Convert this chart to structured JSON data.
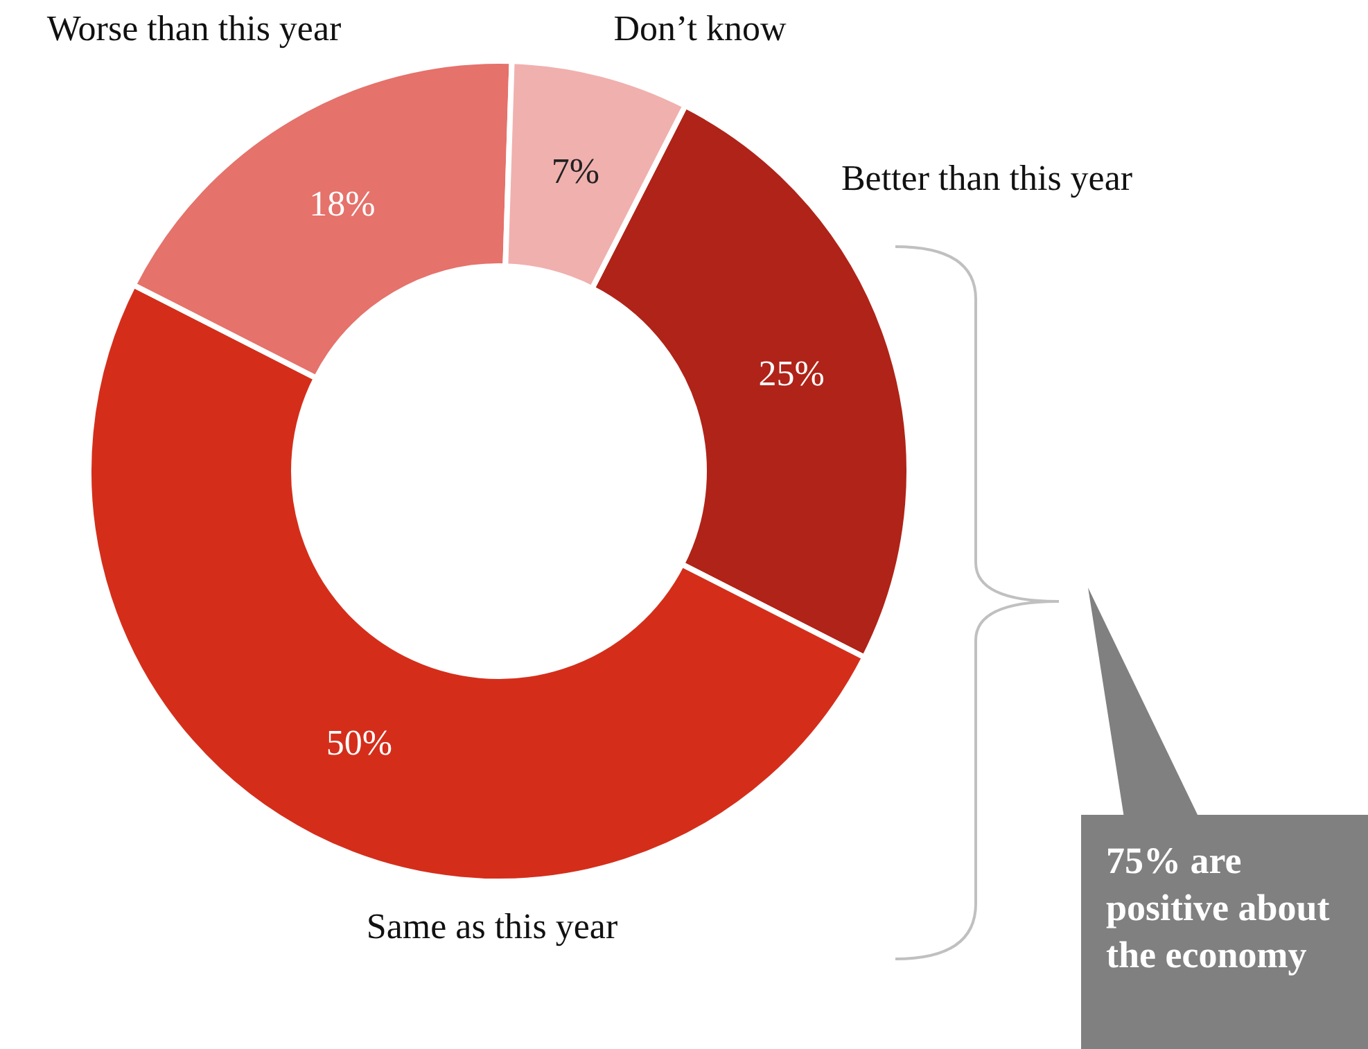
{
  "chart_data": {
    "type": "donut",
    "categories": [
      "Better than this year",
      "Same as this year",
      "Worse than this year",
      "Don’t know"
    ],
    "values": [
      25,
      50,
      18,
      7
    ],
    "colors": [
      "#b02318",
      "#d42e1b",
      "#e5726b",
      "#f0b0ae"
    ],
    "value_labels": [
      "25%",
      "50%",
      "18%",
      "7%"
    ],
    "annotations": [
      "75% are positive about the economy"
    ],
    "legend": false
  }
}
